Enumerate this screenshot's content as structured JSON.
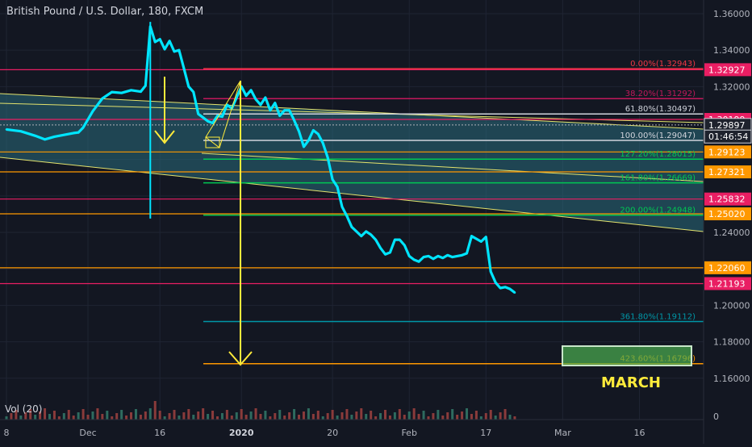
{
  "header": {
    "title": "British Pound / U.S. Dollar, 180, FXCM"
  },
  "volume": {
    "label": "Vol (20)",
    "axis_zero": "0"
  },
  "chart_data": {
    "type": "line",
    "title": "British Pound / U.S. Dollar, 180, FXCM",
    "ylim": [
      1.1515,
      1.3675
    ],
    "y_ticks": [
      "1.36000",
      "1.34000",
      "1.32000",
      "1.24000",
      "1.20000",
      "1.18000",
      "1.16000"
    ],
    "x_ticks": [
      {
        "label": "8",
        "t": 0
      },
      {
        "label": "Dec",
        "t": 17
      },
      {
        "label": "16",
        "t": 32
      },
      {
        "label": "2020",
        "t": 49
      },
      {
        "label": "20",
        "t": 68
      },
      {
        "label": "Feb",
        "t": 84
      },
      {
        "label": "17",
        "t": 100
      },
      {
        "label": "Mar",
        "t": 116
      },
      {
        "label": "16",
        "t": 132
      }
    ],
    "x_range": [
      0,
      140
    ],
    "series": [
      {
        "color": "#00e5ff",
        "points": [
          [
            0,
            1.2965
          ],
          [
            3,
            1.2955
          ],
          [
            6,
            1.293
          ],
          [
            8,
            1.291
          ],
          [
            10,
            1.2925
          ],
          [
            12,
            1.2935
          ],
          [
            14,
            1.2945
          ],
          [
            15,
            1.2948
          ],
          [
            16,
            1.2975
          ],
          [
            18,
            1.3065
          ],
          [
            20,
            1.3135
          ],
          [
            22,
            1.317
          ],
          [
            24,
            1.3165
          ],
          [
            26,
            1.318
          ],
          [
            28,
            1.3172
          ],
          [
            29,
            1.3205
          ],
          [
            30,
            1.353
          ],
          [
            31,
            1.3445
          ],
          [
            32,
            1.346
          ],
          [
            33,
            1.3405
          ],
          [
            34,
            1.345
          ],
          [
            35,
            1.3392
          ],
          [
            36,
            1.34
          ],
          [
            37,
            1.33
          ],
          [
            38,
            1.32
          ],
          [
            39,
            1.317
          ],
          [
            40,
            1.305
          ],
          [
            41,
            1.303
          ],
          [
            42,
            1.301
          ],
          [
            43,
            1.3
          ],
          [
            44,
            1.304
          ],
          [
            45,
            1.3035
          ],
          [
            46,
            1.31
          ],
          [
            47,
            1.308
          ],
          [
            48,
            1.314
          ],
          [
            49,
            1.32
          ],
          [
            50,
            1.315
          ],
          [
            51,
            1.318
          ],
          [
            52,
            1.313
          ],
          [
            53,
            1.31
          ],
          [
            54,
            1.314
          ],
          [
            55,
            1.307
          ],
          [
            56,
            1.311
          ],
          [
            57,
            1.304
          ],
          [
            58,
            1.307
          ],
          [
            59,
            1.307
          ],
          [
            60,
            1.3015
          ],
          [
            61,
            1.2955
          ],
          [
            62,
            1.287
          ],
          [
            63,
            1.2905
          ],
          [
            64,
            1.296
          ],
          [
            65,
            1.294
          ],
          [
            66,
            1.289
          ],
          [
            67,
            1.281
          ],
          [
            68,
            1.269
          ],
          [
            69,
            1.265
          ],
          [
            70,
            1.254
          ],
          [
            71,
            1.249
          ],
          [
            72,
            1.243
          ],
          [
            73,
            1.2405
          ],
          [
            74,
            1.238
          ],
          [
            75,
            1.2405
          ],
          [
            76,
            1.2388
          ],
          [
            77,
            1.236
          ],
          [
            78,
            1.2315
          ],
          [
            79,
            1.228
          ],
          [
            80,
            1.229
          ],
          [
            81,
            1.236
          ],
          [
            82,
            1.236
          ],
          [
            83,
            1.233
          ],
          [
            84,
            1.227
          ],
          [
            85,
            1.225
          ],
          [
            86,
            1.224
          ],
          [
            87,
            1.2265
          ],
          [
            88,
            1.227
          ],
          [
            89,
            1.2255
          ],
          [
            90,
            1.227
          ],
          [
            91,
            1.226
          ],
          [
            92,
            1.2275
          ],
          [
            93,
            1.2265
          ],
          [
            94,
            1.227
          ],
          [
            95,
            1.2275
          ],
          [
            96,
            1.2285
          ],
          [
            97,
            1.238
          ],
          [
            98,
            1.2365
          ],
          [
            99,
            1.235
          ],
          [
            100,
            1.2375
          ],
          [
            101,
            1.2185
          ],
          [
            102,
            1.2125
          ],
          [
            103,
            1.2095
          ],
          [
            104,
            1.21
          ],
          [
            105,
            1.209
          ],
          [
            106,
            1.207
          ]
        ]
      }
    ],
    "fib_labels": [
      {
        "text": "0.00%(1.32943)",
        "y": 1.3298,
        "color": "#f23645"
      },
      {
        "text": "38.20%(1.31292)",
        "y": 1.3134,
        "color": "#c2185b"
      },
      {
        "text": "61.80%(1.30497)",
        "y": 1.305,
        "color": "#d1d4dc"
      },
      {
        "text": "100.00%(1.29047)",
        "y": 1.2905,
        "color": "#d1d4dc"
      },
      {
        "text": "127.20%(1.28015)",
        "y": 1.2802,
        "color": "#00c853"
      },
      {
        "text": "161.80%(1.26669)",
        "y": 1.2672,
        "color": "#00c853"
      },
      {
        "text": "200.00%(1.24948)",
        "y": 1.2495,
        "color": "#00c853"
      },
      {
        "text": "361.80%(1.19112)",
        "y": 1.1911,
        "color": "#0097a7"
      },
      {
        "text": "423.60%(1.16796)",
        "y": 1.168,
        "color": "#ff9800"
      }
    ],
    "price_badges": [
      {
        "text": "1.32927",
        "y": 1.32927,
        "color": "#e91e63"
      },
      {
        "text": "1.30199",
        "y": 1.30199,
        "color": "#e91e63"
      },
      {
        "text": "1.29897",
        "y": 1.29897,
        "color": "#d1d4dc"
      },
      {
        "text": "01:46:54",
        "y": 1.2926,
        "color": "#d1d4dc"
      },
      {
        "text": "1.29123",
        "y": 1.28415,
        "color": "#ff9800"
      },
      {
        "text": "1.27321",
        "y": 1.27321,
        "color": "#ff9800"
      },
      {
        "text": "1.25832",
        "y": 1.25832,
        "color": "#e91e63"
      },
      {
        "text": "1.25020",
        "y": 1.2502,
        "color": "#ff9800"
      },
      {
        "text": "1.22060",
        "y": 1.2206,
        "color": "#ff9800"
      },
      {
        "text": "1.21193",
        "y": 1.21193,
        "color": "#e91e63"
      }
    ],
    "annotations": [
      {
        "text": "MARCH",
        "color": "#ffeb3b"
      }
    ]
  }
}
